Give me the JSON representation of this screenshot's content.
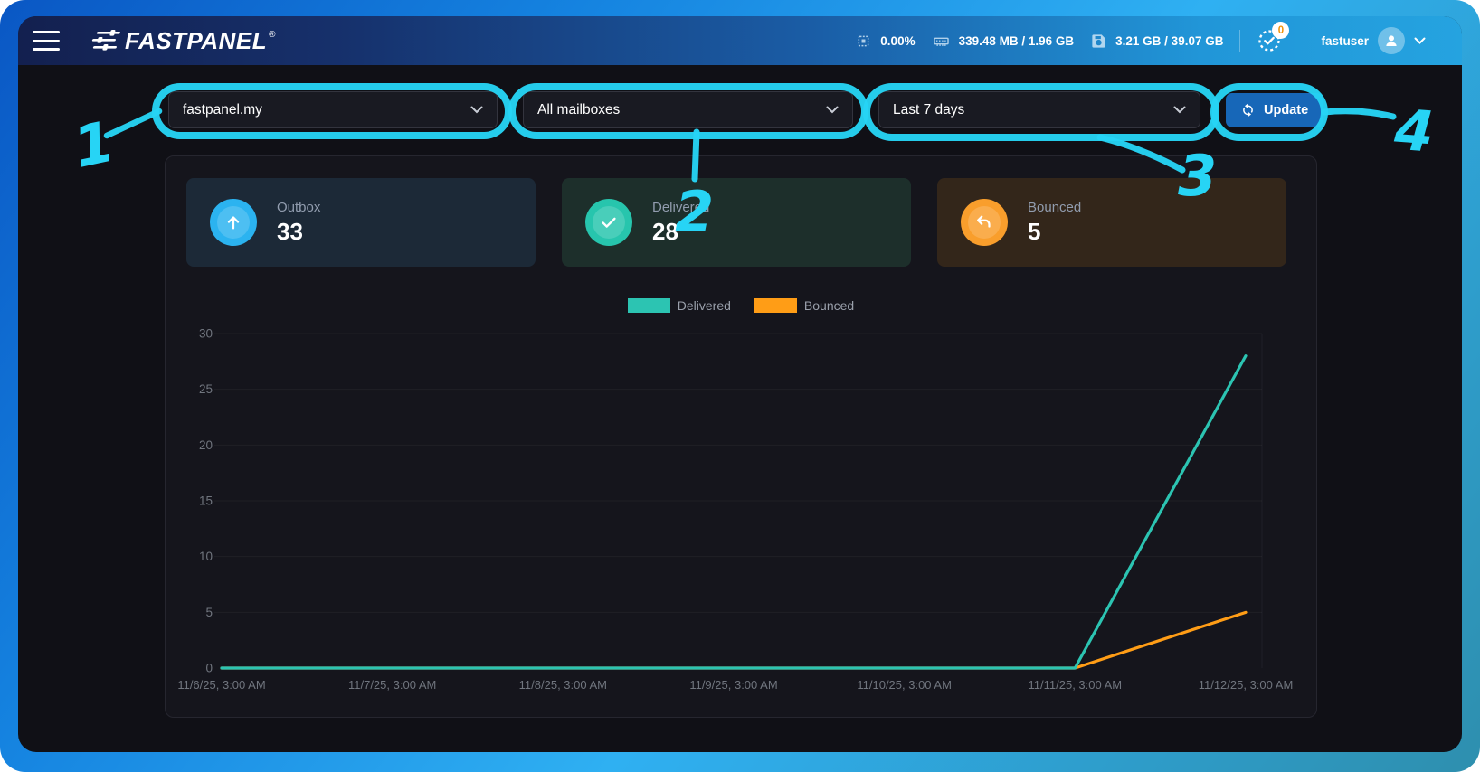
{
  "header": {
    "brand": "FASTPANEL",
    "brand_reg": "®",
    "cpu_usage": "0.00%",
    "memory": "339.48 MB / 1.96 GB",
    "disk": "3.21 GB / 39.07 GB",
    "tasks_badge": "0",
    "username": "fastuser"
  },
  "toolbar": {
    "domain_select": "fastpanel.my",
    "mailbox_select": "All mailboxes",
    "period_select": "Last 7 days",
    "update_label": "Update"
  },
  "stats": [
    {
      "label": "Outbox",
      "value": "33",
      "color": "#2bb3f0",
      "bg": "#1c2937"
    },
    {
      "label": "Delivered",
      "value": "28",
      "color": "#27c5ad",
      "bg": "#1d2f2b"
    },
    {
      "label": "Bounced",
      "value": "5",
      "color": "#f99e2c",
      "bg": "#33261a"
    }
  ],
  "chart_data": {
    "type": "line",
    "categories": [
      "11/6/25, 3:00 AM",
      "11/7/25, 3:00 AM",
      "11/8/25, 3:00 AM",
      "11/9/25, 3:00 AM",
      "11/10/25, 3:00 AM",
      "11/11/25, 3:00 AM",
      "11/12/25, 3:00 AM"
    ],
    "series": [
      {
        "name": "Delivered",
        "color": "#2cc4b2",
        "values": [
          0,
          0,
          0,
          0,
          0,
          0,
          28
        ]
      },
      {
        "name": "Bounced",
        "color": "#ff9d16",
        "values": [
          0,
          0,
          0,
          0,
          0,
          0,
          5
        ]
      }
    ],
    "title": "",
    "xlabel": "",
    "ylabel": "",
    "ylim": [
      0,
      30
    ],
    "yticks": [
      0,
      5,
      10,
      15,
      20,
      25,
      30
    ],
    "grid": true,
    "legend_position": "top-center"
  },
  "annotations": {
    "color": "#27d4f5",
    "items": [
      {
        "label": "1"
      },
      {
        "label": "2"
      },
      {
        "label": "3"
      },
      {
        "label": "4"
      }
    ]
  }
}
